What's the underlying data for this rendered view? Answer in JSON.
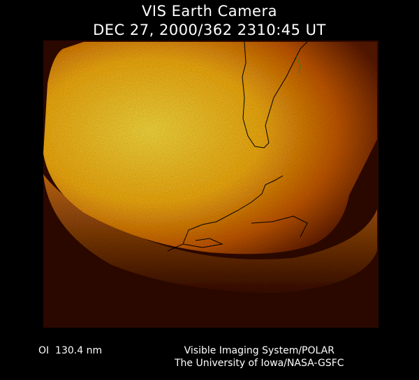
{
  "header": {
    "title": "VIS Earth Camera",
    "timestamp": "DEC 27, 2000/362 2310:45 UT"
  },
  "footer": {
    "filter_label": "OI  130.4 nm",
    "credit_line1": "Visible Imaging System/POLAR",
    "credit_line2": "The University of Iowa/NASA-GSFC"
  },
  "colors": {
    "background": "#000000",
    "glow_core": "#ffd21e",
    "glow_edge": "#7a2a00",
    "coastline": "#000000",
    "grid_line": "#1f8a1f"
  }
}
